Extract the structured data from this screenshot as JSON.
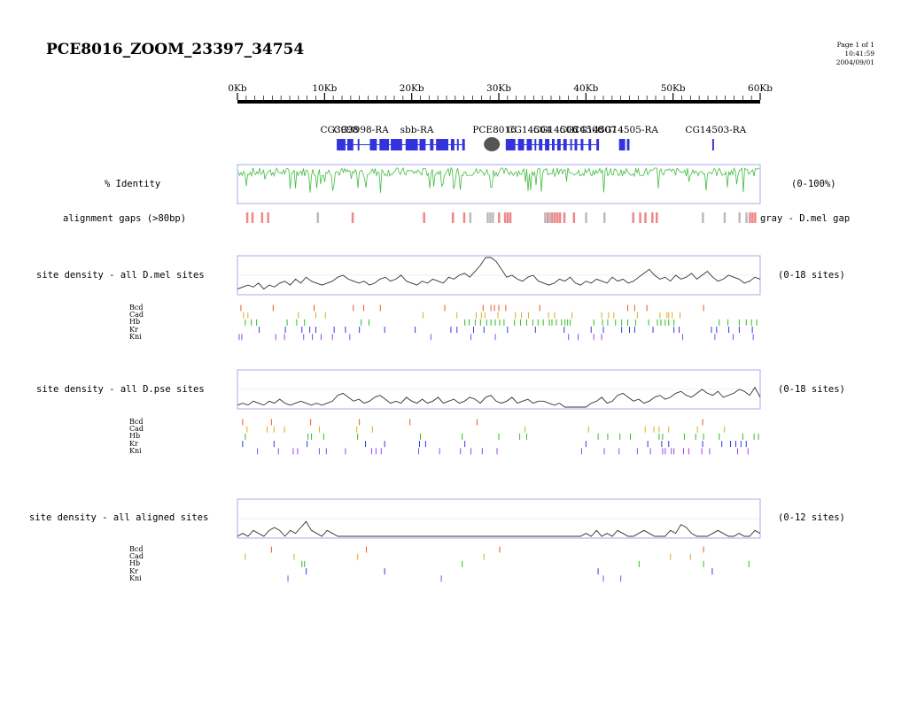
{
  "page": {
    "title": "PCE8016_ZOOM_23397_34754",
    "info": [
      "Page 1 of 1",
      "10:41:59",
      "2004/09/01"
    ]
  },
  "ruler": {
    "labels": [
      "0Kb",
      "10Kb",
      "20Kb",
      "30Kb",
      "40Kb",
      "50Kb",
      "60Kb"
    ],
    "max_kb": 60
  },
  "genes": {
    "labels": [
      {
        "text": "CG3998-RA",
        "kb": 14.2
      },
      {
        "text": "sbb-RA",
        "kb": 20.6
      },
      {
        "text": "PCE8016",
        "kb": 29.5
      },
      {
        "text": "CG14505-RA",
        "kb": 44.8
      },
      {
        "text": "CG14503-RA",
        "kb": 54.9
      }
    ],
    "overlap_labels": [
      {
        "text": "CG3998",
        "kb": 11.7
      },
      {
        "text": "CG14504",
        "kb": 33.5
      },
      {
        "text": "CG14506",
        "kb": 36.5
      },
      {
        "text": "CG14508",
        "kb": 39.5
      },
      {
        "text": "CG14507",
        "kb": 41.0
      }
    ],
    "exons_kb": [
      [
        11.4,
        12.4
      ],
      [
        12.6,
        13.3
      ],
      [
        13.8,
        14.0
      ],
      [
        15.2,
        16.0
      ],
      [
        16.3,
        17.4
      ],
      [
        17.6,
        18.9
      ],
      [
        19.3,
        20.7
      ],
      [
        20.9,
        21.6
      ],
      [
        22.1,
        22.5
      ],
      [
        22.8,
        24.2
      ],
      [
        24.5,
        24.9
      ],
      [
        25.2,
        25.4
      ],
      [
        25.8,
        26.1
      ],
      [
        30.8,
        31.9
      ],
      [
        32.2,
        32.9
      ],
      [
        33.2,
        33.8
      ],
      [
        34.1,
        34.3
      ],
      [
        34.6,
        35.0
      ],
      [
        35.3,
        35.8
      ],
      [
        36.1,
        36.4
      ],
      [
        36.7,
        37.1
      ],
      [
        37.4,
        37.8
      ],
      [
        38.2,
        38.4
      ],
      [
        38.7,
        39.0
      ],
      [
        39.4,
        39.7
      ],
      [
        40.3,
        40.6
      ],
      [
        41.2,
        41.5
      ],
      [
        43.8,
        44.5
      ],
      [
        44.7,
        45.0
      ],
      [
        54.5,
        54.7
      ]
    ],
    "oval_kb": 29.2,
    "exon_color": "#3333dd",
    "oval_color": "#555555"
  },
  "identity": {
    "label": "% Identity",
    "range": "(0-100%)",
    "color": "#44bb44"
  },
  "gaps": {
    "label": "alignment gaps (>80bp)",
    "legend": "gray - D.mel gap",
    "red_kb": [
      1.0,
      1.6,
      2.7,
      3.4,
      13.1,
      21.3,
      24.6,
      25.9,
      29.9,
      30.6,
      30.9,
      31.2,
      35.5,
      36.0,
      36.3,
      36.6,
      36.9,
      37.4,
      38.5,
      45.3,
      46.1,
      46.7,
      47.5,
      48.0,
      58.7,
      59.0,
      59.3
    ],
    "gray_kb": [
      9.1,
      26.6,
      28.6,
      28.9,
      29.2,
      35.2,
      35.8,
      39.9,
      42.0,
      53.3,
      55.8,
      57.5,
      58.3
    ],
    "red_color": "#ee8888",
    "gray_color": "#bbbbbb"
  },
  "sections": [
    {
      "label": "site density - all D.mel sites",
      "range": "(0-18 sites)",
      "factors": [
        "Bcd",
        "Cad",
        "Hb",
        "Kr",
        "Kni"
      ],
      "density": [
        2,
        3,
        4,
        3,
        5,
        2,
        4,
        3,
        5,
        6,
        4,
        7,
        5,
        8,
        6,
        5,
        4,
        5,
        6,
        8,
        9,
        7,
        6,
        5,
        6,
        4,
        5,
        7,
        8,
        6,
        7,
        9,
        6,
        5,
        4,
        6,
        5,
        7,
        6,
        5,
        8,
        7,
        9,
        10,
        8,
        11,
        14,
        18,
        18,
        16,
        12,
        8,
        9,
        7,
        6,
        8,
        9,
        6,
        5,
        4,
        5,
        7,
        6,
        8,
        5,
        4,
        6,
        5,
        7,
        6,
        5,
        8,
        6,
        7,
        5,
        6,
        8,
        10,
        12,
        9,
        7,
        8,
        6,
        9,
        7,
        8,
        10,
        7,
        9,
        11,
        8,
        6,
        7,
        9,
        8,
        7,
        5,
        6,
        8,
        7
      ],
      "ticks_kb": [
        [
          0.4,
          4.1,
          8.8,
          13.3,
          14.5,
          16.4,
          23.8,
          28.2,
          29.1,
          29.5,
          30.0,
          30.8,
          34.7,
          44.8,
          45.6,
          47.0,
          53.5
        ],
        [
          0.7,
          1.2,
          7.0,
          9.0,
          10.1,
          21.3,
          25.2,
          27.4,
          28.0,
          28.4,
          29.9,
          31.9,
          32.6,
          33.4,
          35.7,
          36.4,
          38.4,
          41.8,
          42.6,
          43.2,
          45.9,
          48.5,
          49.3,
          49.5,
          49.9,
          50.8
        ],
        [
          0.9,
          1.6,
          2.2,
          5.7,
          6.8,
          7.7,
          14.2,
          15.1,
          26.1,
          26.6,
          27.3,
          27.9,
          28.6,
          29.1,
          29.6,
          30.1,
          30.6,
          31.8,
          32.5,
          33.2,
          33.9,
          34.5,
          35.1,
          35.8,
          36.1,
          36.6,
          37.2,
          37.6,
          37.9,
          38.2,
          40.9,
          41.9,
          42.5,
          43.4,
          44.1,
          44.8,
          45.7,
          47.2,
          48.2,
          48.6,
          49.1,
          49.5,
          50.1,
          55.3,
          56.3,
          57.6,
          58.4,
          59.0,
          59.6
        ],
        [
          2.5,
          5.5,
          7.4,
          8.3,
          9.0,
          11.1,
          12.4,
          14.0,
          16.9,
          20.4,
          24.5,
          25.2,
          27.1,
          28.3,
          31.0,
          34.2,
          37.5,
          40.6,
          42.0,
          44.1,
          45.0,
          45.6,
          47.7,
          50.1,
          50.7,
          54.4,
          55.0,
          56.4,
          57.6,
          59.1
        ],
        [
          0.2,
          0.5,
          4.4,
          5.4,
          7.6,
          8.6,
          9.6,
          10.9,
          12.9,
          22.2,
          26.8,
          29.6,
          38.0,
          39.1,
          40.9,
          41.8,
          51.1,
          54.8,
          56.9,
          59.2
        ]
      ]
    },
    {
      "label": "site density - all D.pse sites",
      "range": "(0-18 sites)",
      "factors": [
        "Bcd",
        "Cad",
        "Hb",
        "Kr",
        "Kni"
      ],
      "density": [
        1,
        2,
        1,
        3,
        2,
        1,
        3,
        2,
        4,
        2,
        1,
        2,
        3,
        2,
        1,
        2,
        1,
        2,
        3,
        6,
        7,
        5,
        3,
        4,
        2,
        3,
        5,
        6,
        4,
        2,
        3,
        2,
        5,
        3,
        2,
        4,
        2,
        3,
        5,
        2,
        3,
        4,
        2,
        3,
        5,
        4,
        2,
        5,
        6,
        3,
        2,
        3,
        5,
        2,
        3,
        4,
        2,
        3,
        3,
        2,
        1,
        2,
        0,
        0,
        0,
        0,
        0,
        2,
        3,
        5,
        2,
        3,
        6,
        7,
        5,
        3,
        4,
        2,
        3,
        5,
        6,
        4,
        5,
        7,
        8,
        6,
        5,
        7,
        9,
        7,
        6,
        8,
        5,
        6,
        7,
        9,
        8,
        6,
        10,
        5
      ],
      "ticks_kb": [
        [
          0.6,
          3.9,
          8.4,
          14.0,
          19.8,
          27.5,
          53.4
        ],
        [
          1.1,
          3.4,
          4.2,
          5.4,
          9.4,
          13.7,
          15.5,
          33.0,
          40.3,
          46.8,
          47.8,
          48.4,
          49.5,
          52.8,
          55.9
        ],
        [
          0.9,
          8.1,
          8.5,
          9.9,
          13.8,
          21.0,
          25.8,
          30.0,
          32.4,
          33.2,
          41.4,
          42.5,
          43.9,
          45.1,
          48.4,
          48.8,
          51.3,
          52.6,
          53.5,
          55.3,
          58.0,
          59.3,
          59.8
        ],
        [
          0.6,
          4.2,
          8.0,
          14.7,
          16.9,
          20.9,
          21.6,
          26.1,
          40.0,
          47.1,
          48.7,
          49.5,
          53.4,
          55.6,
          56.6,
          57.2,
          57.8,
          58.4
        ],
        [
          2.3,
          4.7,
          6.4,
          6.9,
          9.4,
          10.2,
          12.4,
          15.4,
          15.9,
          16.5,
          20.8,
          23.2,
          25.6,
          26.8,
          28.1,
          29.8,
          39.5,
          42.1,
          43.8,
          45.9,
          47.4,
          48.8,
          49.1,
          49.8,
          50.1,
          51.2,
          51.8,
          53.3,
          54.2,
          57.4,
          58.6
        ]
      ]
    },
    {
      "label": "site density - all aligned sites",
      "range": "(0-12 sites)",
      "factors": [
        "Bcd",
        "Cad",
        "Hb",
        "Kr",
        "Kni"
      ],
      "density": [
        0,
        1,
        0,
        2,
        1,
        0,
        2,
        3,
        2,
        0,
        2,
        1,
        3,
        5,
        2,
        1,
        0,
        2,
        1,
        0,
        0,
        0,
        0,
        0,
        0,
        0,
        0,
        0,
        0,
        0,
        0,
        0,
        0,
        0,
        0,
        0,
        0,
        0,
        0,
        0,
        0,
        0,
        0,
        0,
        0,
        0,
        0,
        0,
        0,
        0,
        0,
        0,
        0,
        0,
        0,
        0,
        0,
        0,
        0,
        0,
        0,
        0,
        0,
        0,
        0,
        0,
        1,
        0,
        2,
        0,
        1,
        0,
        2,
        1,
        0,
        0,
        1,
        2,
        1,
        0,
        0,
        0,
        2,
        1,
        4,
        3,
        1,
        0,
        0,
        0,
        1,
        2,
        1,
        0,
        0,
        1,
        0,
        0,
        2,
        1
      ],
      "ticks_kb": [
        [
          3.9,
          14.8,
          30.1,
          53.5
        ],
        [
          0.9,
          6.5,
          13.8,
          28.3,
          49.7,
          52.0
        ],
        [
          7.4,
          7.7,
          25.8,
          46.1,
          53.5,
          58.7
        ],
        [
          7.9,
          16.9,
          41.4,
          54.5
        ],
        [
          5.8,
          23.4,
          42.0,
          44.0
        ]
      ]
    }
  ],
  "factor_colors": [
    "#ee5522",
    "#ddaa22",
    "#33bb22",
    "#3333ee",
    "#9944ee"
  ],
  "line_color": "#333333",
  "frame_color": "#aaaaee"
}
